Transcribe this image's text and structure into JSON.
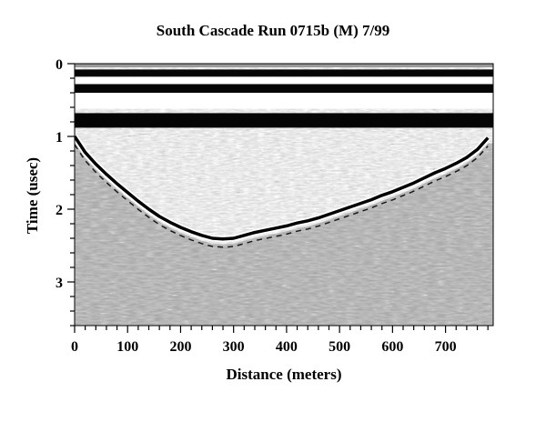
{
  "chart_data": {
    "type": "heatmap",
    "title": "South Cascade Run 0715b (M) 7/99",
    "xlabel": "Distance (meters)",
    "ylabel": "Time (usec)",
    "xlim": [
      0,
      790
    ],
    "ylim": [
      3.6,
      0
    ],
    "xticks": [
      0,
      100,
      200,
      300,
      400,
      500,
      600,
      700
    ],
    "yticks": [
      0,
      1,
      2,
      3
    ],
    "x_minor_step": 20,
    "y_minor_step": 0.2,
    "colormap": "grayscale",
    "grid": false,
    "surface_bands_usec": [
      {
        "from": 0.0,
        "to": 0.05,
        "tone": "gray"
      },
      {
        "from": 0.08,
        "to": 0.18,
        "tone": "black"
      },
      {
        "from": 0.28,
        "to": 0.4,
        "tone": "black"
      },
      {
        "from": 0.68,
        "to": 0.88,
        "tone": "black"
      }
    ],
    "bed_reflector": {
      "x": [
        0,
        20,
        40,
        60,
        80,
        100,
        120,
        140,
        160,
        180,
        200,
        220,
        240,
        260,
        280,
        300,
        320,
        340,
        360,
        380,
        400,
        420,
        440,
        460,
        480,
        500,
        520,
        540,
        560,
        580,
        600,
        620,
        640,
        660,
        680,
        700,
        720,
        740,
        760,
        780
      ],
      "t": [
        1.0,
        1.22,
        1.38,
        1.52,
        1.65,
        1.77,
        1.89,
        2.0,
        2.1,
        2.18,
        2.25,
        2.31,
        2.36,
        2.4,
        2.41,
        2.4,
        2.36,
        2.32,
        2.29,
        2.26,
        2.23,
        2.19,
        2.16,
        2.12,
        2.07,
        2.02,
        1.97,
        1.92,
        1.87,
        1.81,
        1.76,
        1.7,
        1.64,
        1.57,
        1.5,
        1.44,
        1.37,
        1.29,
        1.18,
        1.02
      ]
    }
  }
}
